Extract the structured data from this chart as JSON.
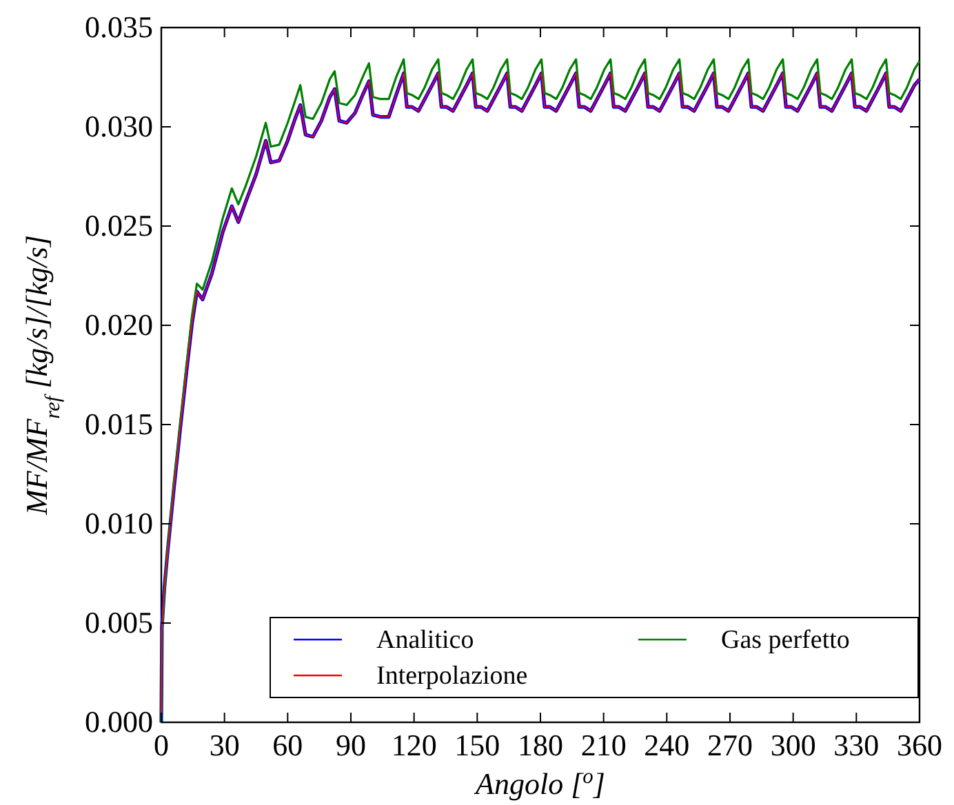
{
  "chart_data": {
    "type": "line",
    "xlabel": "Angolo [$^{o}$]",
    "ylabel": "MF/MF$_{ref}$ [kg/s]/[kg/s]",
    "xlim": [
      0,
      360
    ],
    "xticks": [
      0,
      30,
      60,
      90,
      120,
      150,
      180,
      210,
      240,
      270,
      300,
      330,
      360
    ],
    "ylim": [
      0,
      0.035
    ],
    "yticks": [
      {
        "value": 0,
        "label": "0.000"
      },
      {
        "value": 0.005,
        "label": "0.005"
      },
      {
        "value": 0.01,
        "label": "0.010"
      },
      {
        "value": 0.015,
        "label": "0.015"
      },
      {
        "value": 0.02,
        "label": "0.020"
      },
      {
        "value": 0.025,
        "label": "0.025"
      },
      {
        "value": 0.03,
        "label": "0.030"
      },
      {
        "value": 0.035,
        "label": "0.035"
      }
    ],
    "grid": false,
    "legend": "bottom right",
    "marker": "none",
    "line_style": "solid",
    "x": [
      0,
      0.3,
      1.5,
      3.0,
      6.0,
      9.0,
      12.0,
      14.6,
      16.9,
      19.6,
      24.0,
      29.2,
      33.5,
      36.6,
      40.0,
      45.0,
      49.6,
      52.0,
      56.0,
      60.0,
      63.5,
      66.0,
      68.5,
      72.0,
      76.0,
      80.0,
      82.3,
      84.5,
      88.0,
      92.0,
      96.0,
      98.6,
      100.5,
      104.0,
      108.0,
      111.5,
      115.1,
      116.6,
      119.1,
      122.1,
      125.1,
      128.6,
      131.5,
      133.0,
      135.5,
      138.5,
      141.5,
      145.0,
      147.8,
      149.3,
      151.8,
      154.8,
      157.8,
      161.3,
      164.2,
      165.7,
      168.2,
      171.2,
      174.2,
      177.7,
      180.5,
      182.0,
      184.5,
      187.5,
      190.5,
      194.0,
      196.9,
      198.4,
      200.9,
      203.9,
      206.9,
      210.4,
      213.3,
      214.8,
      217.3,
      220.3,
      223.3,
      226.8,
      229.6,
      231.1,
      233.6,
      236.6,
      239.6,
      243.1,
      246.0,
      247.5,
      250.0,
      253.0,
      256.0,
      259.5,
      262.3,
      263.8,
      266.3,
      269.3,
      272.3,
      275.8,
      278.7,
      280.2,
      282.7,
      285.7,
      288.7,
      292.2,
      295.1,
      296.6,
      299.1,
      302.1,
      305.1,
      308.6,
      311.4,
      312.9,
      315.4,
      318.4,
      321.4,
      324.9,
      327.8,
      329.3,
      331.8,
      334.8,
      337.8,
      341.3,
      344.1,
      345.6,
      348.1,
      351.1,
      354.1,
      357.6,
      360
    ],
    "series": [
      {
        "name": "Analitico",
        "color": "#0000ff",
        "values": [
          0,
          0.0048,
          0.0068,
          0.0086,
          0.0118,
          0.0148,
          0.0177,
          0.0201,
          0.0217,
          0.0213,
          0.0226,
          0.0247,
          0.026,
          0.0252,
          0.0262,
          0.0276,
          0.0293,
          0.0282,
          0.0283,
          0.0293,
          0.0304,
          0.0311,
          0.0296,
          0.0295,
          0.0303,
          0.0315,
          0.0319,
          0.0303,
          0.0302,
          0.0307,
          0.0317,
          0.0323,
          0.0306,
          0.0305,
          0.0305,
          0.0316,
          0.0327,
          0.031,
          0.031,
          0.0308,
          0.0314,
          0.0321,
          0.0327,
          0.031,
          0.031,
          0.0308,
          0.0314,
          0.0321,
          0.0327,
          0.031,
          0.031,
          0.0308,
          0.0314,
          0.0321,
          0.0327,
          0.031,
          0.031,
          0.0308,
          0.0314,
          0.0321,
          0.0327,
          0.031,
          0.031,
          0.0308,
          0.0314,
          0.0321,
          0.0327,
          0.031,
          0.031,
          0.0308,
          0.0314,
          0.0321,
          0.0327,
          0.031,
          0.031,
          0.0308,
          0.0314,
          0.0321,
          0.0327,
          0.031,
          0.031,
          0.0308,
          0.0314,
          0.0321,
          0.0327,
          0.031,
          0.031,
          0.0308,
          0.0314,
          0.0321,
          0.0327,
          0.031,
          0.031,
          0.0308,
          0.0314,
          0.0321,
          0.0327,
          0.031,
          0.031,
          0.0308,
          0.0314,
          0.0321,
          0.0327,
          0.031,
          0.031,
          0.0308,
          0.0314,
          0.0321,
          0.0327,
          0.031,
          0.031,
          0.0308,
          0.0314,
          0.0321,
          0.0327,
          0.031,
          0.031,
          0.0308,
          0.0314,
          0.0321,
          0.0327,
          0.031,
          0.031,
          0.0308,
          0.0314,
          0.0321,
          0.0324
        ]
      },
      {
        "name": "Interpolazione",
        "color": "#ff0000",
        "values": [
          0,
          0.0048,
          0.0068,
          0.0086,
          0.0118,
          0.0148,
          0.0177,
          0.0201,
          0.0217,
          0.0213,
          0.0226,
          0.0247,
          0.026,
          0.0252,
          0.0262,
          0.0276,
          0.0293,
          0.0282,
          0.0283,
          0.0293,
          0.0304,
          0.0311,
          0.0296,
          0.0295,
          0.0303,
          0.0315,
          0.0319,
          0.0303,
          0.0302,
          0.0307,
          0.0317,
          0.0323,
          0.0306,
          0.0305,
          0.0305,
          0.0316,
          0.0327,
          0.031,
          0.031,
          0.0308,
          0.0314,
          0.0321,
          0.0327,
          0.031,
          0.031,
          0.0308,
          0.0314,
          0.0321,
          0.0327,
          0.031,
          0.031,
          0.0308,
          0.0314,
          0.0321,
          0.0327,
          0.031,
          0.031,
          0.0308,
          0.0314,
          0.0321,
          0.0327,
          0.031,
          0.031,
          0.0308,
          0.0314,
          0.0321,
          0.0327,
          0.031,
          0.031,
          0.0308,
          0.0314,
          0.0321,
          0.0327,
          0.031,
          0.031,
          0.0308,
          0.0314,
          0.0321,
          0.0327,
          0.031,
          0.031,
          0.0308,
          0.0314,
          0.0321,
          0.0327,
          0.031,
          0.031,
          0.0308,
          0.0314,
          0.0321,
          0.0327,
          0.031,
          0.031,
          0.0308,
          0.0314,
          0.0321,
          0.0327,
          0.031,
          0.031,
          0.0308,
          0.0314,
          0.0321,
          0.0327,
          0.031,
          0.031,
          0.0308,
          0.0314,
          0.0321,
          0.0327,
          0.031,
          0.031,
          0.0308,
          0.0314,
          0.0321,
          0.0327,
          0.031,
          0.031,
          0.0308,
          0.0314,
          0.0321,
          0.0327,
          0.031,
          0.031,
          0.0308,
          0.0314,
          0.0321,
          0.0324
        ]
      },
      {
        "name": "Gas perfetto",
        "color": "#008000",
        "values": [
          0,
          0.0045,
          0.0066,
          0.0087,
          0.012,
          0.015,
          0.018,
          0.0205,
          0.0221,
          0.0218,
          0.0232,
          0.0254,
          0.0269,
          0.0261,
          0.027,
          0.0285,
          0.0302,
          0.029,
          0.0291,
          0.0302,
          0.0313,
          0.0321,
          0.0305,
          0.0304,
          0.0312,
          0.0324,
          0.0328,
          0.0312,
          0.0311,
          0.0316,
          0.0326,
          0.0332,
          0.0315,
          0.0314,
          0.0314,
          0.0325,
          0.0334,
          0.0317,
          0.0316,
          0.0314,
          0.032,
          0.0329,
          0.0334,
          0.0317,
          0.0316,
          0.0314,
          0.032,
          0.0329,
          0.0334,
          0.0317,
          0.0316,
          0.0314,
          0.032,
          0.0329,
          0.0334,
          0.0317,
          0.0316,
          0.0314,
          0.032,
          0.0329,
          0.0334,
          0.0317,
          0.0316,
          0.0314,
          0.032,
          0.0329,
          0.0334,
          0.0317,
          0.0316,
          0.0314,
          0.032,
          0.0329,
          0.0334,
          0.0317,
          0.0316,
          0.0314,
          0.032,
          0.0329,
          0.0334,
          0.0317,
          0.0316,
          0.0314,
          0.032,
          0.0329,
          0.0334,
          0.0317,
          0.0316,
          0.0314,
          0.032,
          0.0329,
          0.0334,
          0.0317,
          0.0316,
          0.0314,
          0.032,
          0.0329,
          0.0334,
          0.0317,
          0.0316,
          0.0314,
          0.032,
          0.0329,
          0.0334,
          0.0317,
          0.0316,
          0.0314,
          0.032,
          0.0329,
          0.0334,
          0.0317,
          0.0316,
          0.0314,
          0.032,
          0.0329,
          0.0334,
          0.0317,
          0.0316,
          0.0314,
          0.032,
          0.0329,
          0.0334,
          0.0317,
          0.0316,
          0.0314,
          0.032,
          0.0329,
          0.0333
        ]
      }
    ]
  }
}
